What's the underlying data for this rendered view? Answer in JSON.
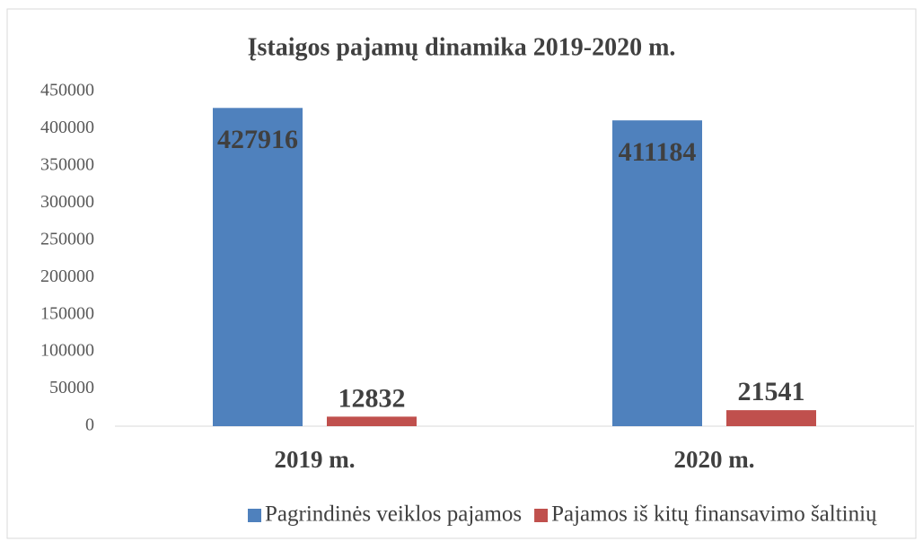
{
  "chart_data": {
    "type": "bar",
    "title": "Įstaigos pajamų dinamika 2019-2020 m.",
    "categories": [
      "2019 m.",
      "2020 m."
    ],
    "series": [
      {
        "name": "Pagrindinės veiklos pajamos",
        "color": "#4f81bd",
        "values": [
          427916,
          411184
        ]
      },
      {
        "name": "Pajamos iš kitų finansavimo šaltinių",
        "color": "#c0504d",
        "values": [
          12832,
          21541
        ]
      }
    ],
    "ylim": [
      0,
      450000
    ],
    "yticks": [
      0,
      50000,
      100000,
      150000,
      200000,
      250000,
      300000,
      350000,
      400000,
      450000
    ],
    "grid": false,
    "legend": "bottom"
  }
}
